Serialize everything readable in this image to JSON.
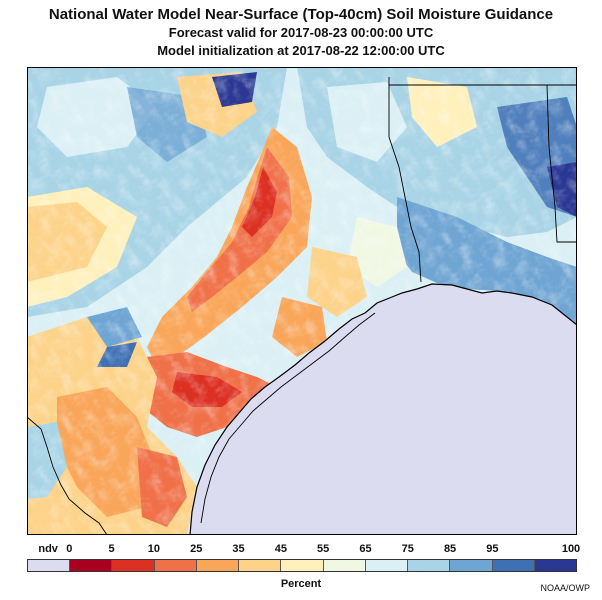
{
  "title": {
    "line1": "National Water Model Near-Surface (Top-40cm) Soil Moisture Guidance",
    "line2": "Forecast valid for 2017-08-23 00:00:00 UTC",
    "line3": "Model initialization at 2017-08-22 12:00:00 UTC"
  },
  "legend": {
    "labels": [
      "ndv",
      "0",
      "5",
      "10",
      "25",
      "35",
      "45",
      "55",
      "65",
      "75",
      "85",
      "95",
      "100"
    ],
    "colors": [
      "#dcdcf0",
      "#a8001e",
      "#dc3022",
      "#f07048",
      "#f9a65a",
      "#fdd38a",
      "#fff0bc",
      "#f0f8e4",
      "#daf0f5",
      "#a8d4e6",
      "#6fa5d3",
      "#3f70b4",
      "#2a3893"
    ],
    "unit_label": "Percent"
  },
  "credit": "NOAA/OWP"
}
